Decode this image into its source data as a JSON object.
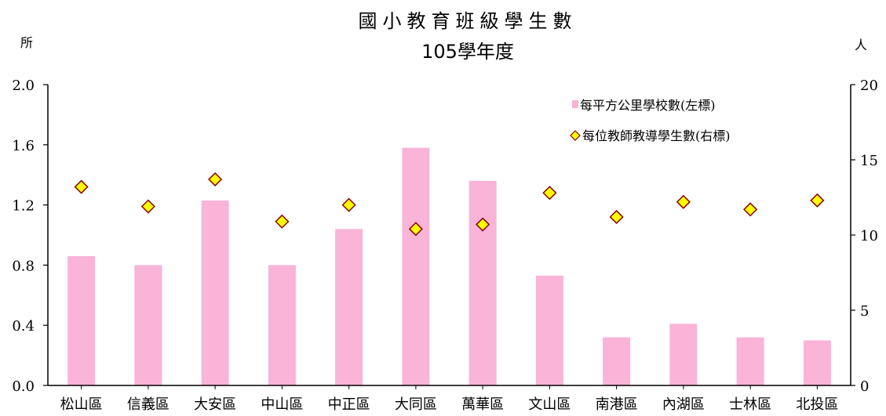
{
  "chart_data": {
    "type": "bar",
    "title": "國小教育班級學生數",
    "subtitle": "105學年度",
    "ylabel_left": "所",
    "ylabel_right": "人",
    "categories": [
      "松山區",
      "信義區",
      "大安區",
      "中山區",
      "中正區",
      "大同區",
      "萬華區",
      "文山區",
      "南港區",
      "內湖區",
      "士林區",
      "北投區"
    ],
    "ylim_left": [
      0,
      2.0
    ],
    "yticks_left": [
      "0.0",
      "0.4",
      "0.8",
      "1.2",
      "1.6",
      "2.0"
    ],
    "ylim_right": [
      0,
      20
    ],
    "yticks_right": [
      "0",
      "5",
      "10",
      "15",
      "20"
    ],
    "grid": false,
    "legend_position": "top-right",
    "series": [
      {
        "name": "每平方公里學校數(左標)",
        "type": "bar",
        "axis": "left",
        "color": "#F9B4D8",
        "values": [
          0.86,
          0.8,
          1.23,
          0.8,
          1.04,
          1.58,
          1.36,
          0.73,
          0.32,
          0.41,
          0.32,
          0.3
        ]
      },
      {
        "name": "每位教師教導學生數(右標)",
        "type": "scatter",
        "axis": "right",
        "color": "#FFFF00",
        "edge_color": "#8B0000",
        "values": [
          13.2,
          11.9,
          13.7,
          10.9,
          12.0,
          10.4,
          10.7,
          12.8,
          11.2,
          12.2,
          11.7,
          12.3
        ]
      }
    ]
  }
}
